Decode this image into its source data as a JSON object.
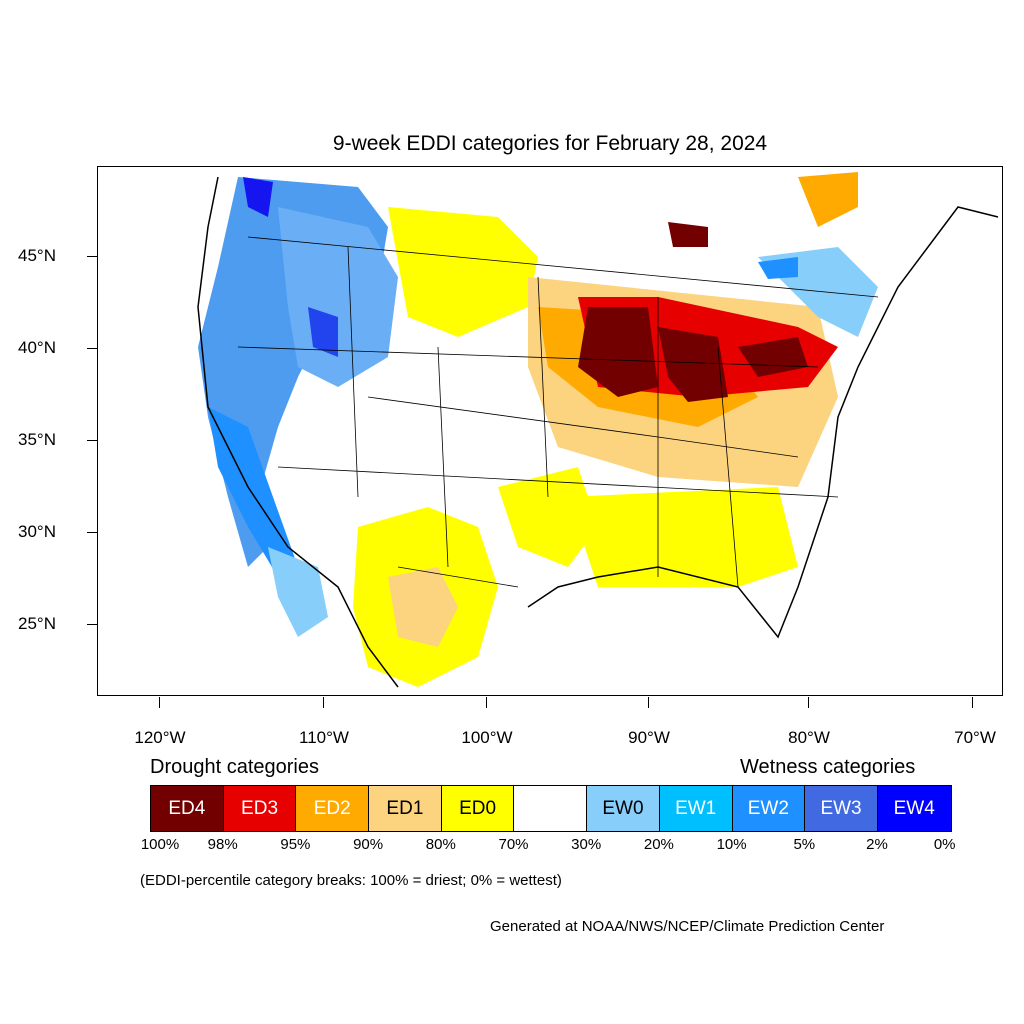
{
  "title": "9-week EDDI categories for February 28, 2024",
  "lat_labels": [
    "45°N",
    "40°N",
    "35°N",
    "30°N",
    "25°N"
  ],
  "lon_labels": [
    "120°W",
    "110°W",
    "100°W",
    "90°W",
    "80°W",
    "70°W"
  ],
  "legend": {
    "drought_heading": "Drought categories",
    "wetness_heading": "Wetness categories",
    "categories": [
      {
        "label": "ED4",
        "color": "#730000"
      },
      {
        "label": "ED3",
        "color": "#e60000"
      },
      {
        "label": "ED2",
        "color": "#ffaa00"
      },
      {
        "label": "ED1",
        "color": "#fcd37f"
      },
      {
        "label": "ED0",
        "color": "#ffff00"
      },
      {
        "label": "",
        "color": "#ffffff"
      },
      {
        "label": "EW0",
        "color": "#87cefa"
      },
      {
        "label": "EW1",
        "color": "#00bfff"
      },
      {
        "label": "EW2",
        "color": "#1e90ff"
      },
      {
        "label": "EW3",
        "color": "#4169e1"
      },
      {
        "label": "EW4",
        "color": "#0000ff"
      }
    ],
    "percentiles": [
      "100%",
      "98%",
      "95%",
      "90%",
      "80%",
      "70%",
      "30%",
      "20%",
      "10%",
      "5%",
      "2%",
      "0%"
    ]
  },
  "note": "(EDDI-percentile category breaks: 100% = driest; 0% = wettest)",
  "credit": "Generated at NOAA/NWS/NCEP/Climate Prediction Center"
}
